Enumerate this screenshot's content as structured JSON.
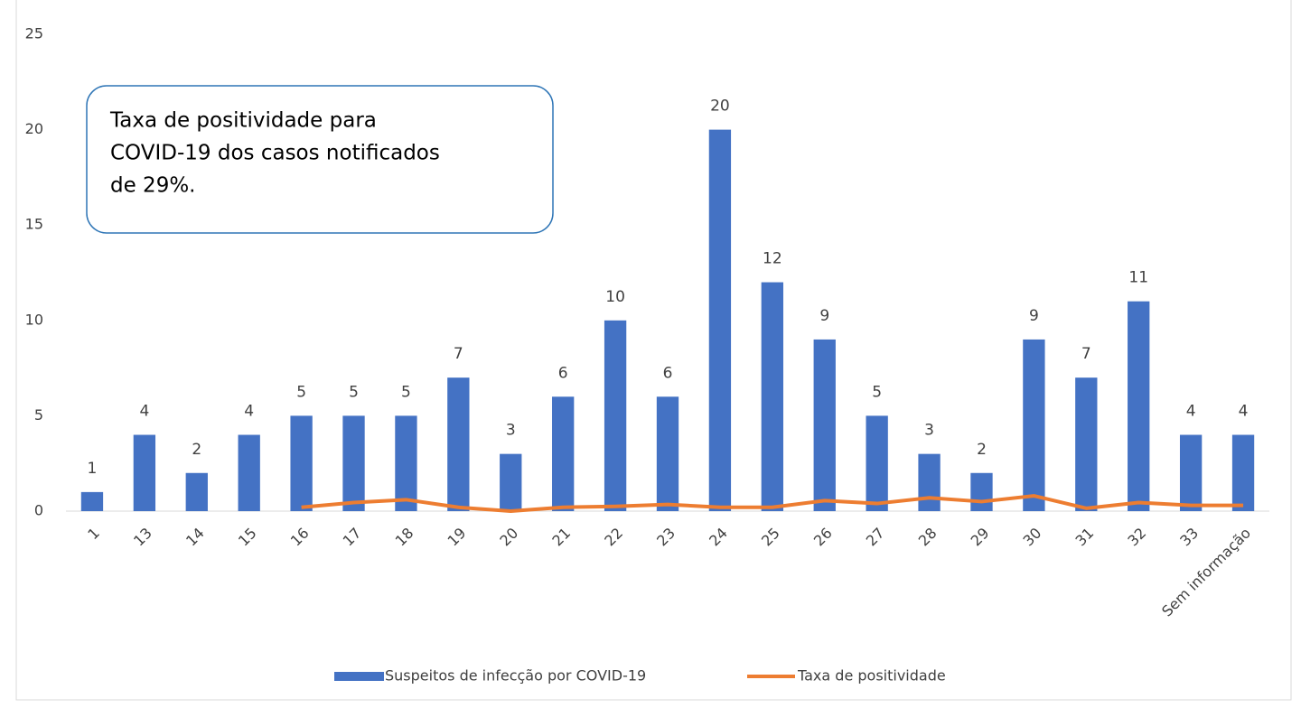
{
  "chart_data": {
    "type": "bar",
    "annotation": [
      "Taxa de positividade para",
      "COVID-19 dos casos notificados",
      "de 29%."
    ],
    "categories": [
      "1",
      "13",
      "14",
      "15",
      "16",
      "17",
      "18",
      "19",
      "20",
      "21",
      "22",
      "23",
      "24",
      "25",
      "26",
      "27",
      "28",
      "29",
      "30",
      "31",
      "32",
      "33",
      "Sem informação"
    ],
    "series": [
      {
        "name": "Suspeitos de infecção por COVID-19",
        "type": "bar",
        "color": "#4472c4",
        "values": [
          1,
          4,
          2,
          4,
          5,
          5,
          5,
          7,
          3,
          6,
          10,
          6,
          20,
          12,
          9,
          5,
          3,
          2,
          9,
          7,
          11,
          4,
          4
        ]
      },
      {
        "name": "Taxa de positividade",
        "type": "line",
        "color": "#ed7d31",
        "values": [
          null,
          null,
          null,
          null,
          0.2,
          0.45,
          0.6,
          0.2,
          0,
          0.2,
          0.25,
          0.35,
          0.2,
          0.2,
          0.55,
          0.4,
          0.7,
          0.5,
          0.8,
          0.15,
          0.45,
          0.3,
          0.3
        ]
      }
    ],
    "ylim": [
      0,
      25
    ],
    "yticks": [
      0,
      5,
      10,
      15,
      20,
      25
    ],
    "grid": false,
    "legend": "bottom"
  }
}
